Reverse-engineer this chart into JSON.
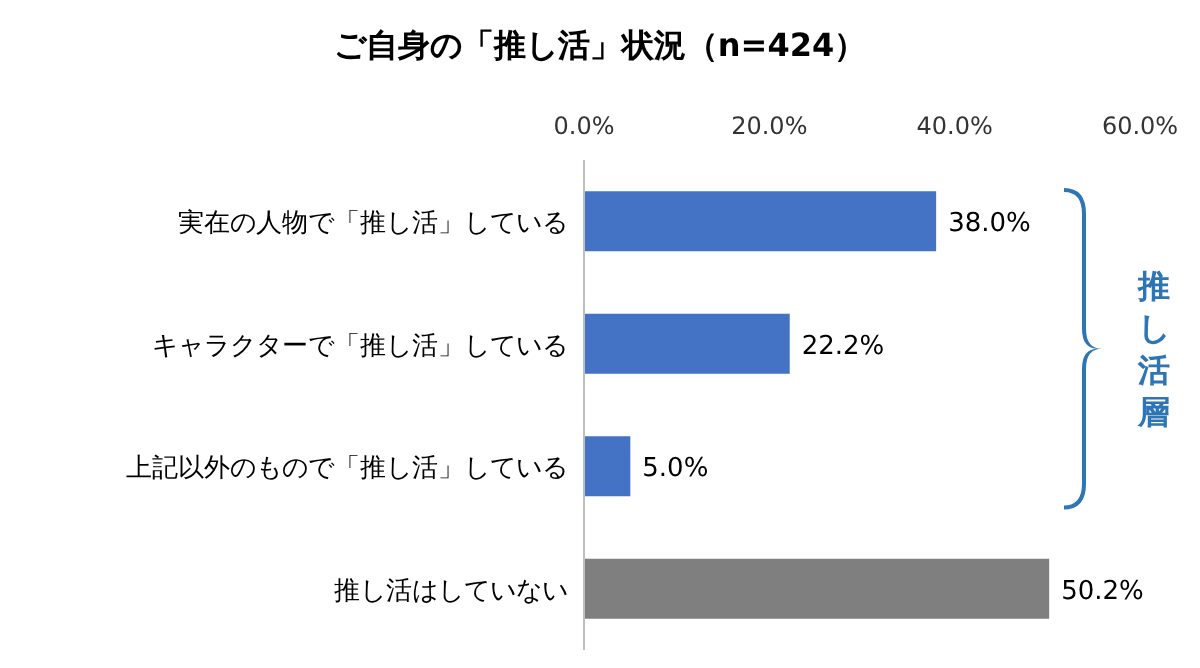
{
  "chart_data": {
    "type": "bar",
    "orientation": "horizontal",
    "title": "ご自身の「推し活」状況（n=424）",
    "categories": [
      "実在の人物で「推し活」している",
      "キャラクターで「推し活」している",
      "上記以外のもので「推し活」している",
      "推し活はしていない"
    ],
    "values": [
      38.0,
      22.2,
      5.0,
      50.2
    ],
    "colors": [
      "#4472c4",
      "#4472c4",
      "#4472c4",
      "#7f7f7f"
    ],
    "value_labels": [
      "38.0%",
      "22.2%",
      "5.0%",
      "50.2%"
    ],
    "xlim": [
      0,
      60
    ],
    "xticks": [
      {
        "value": 0,
        "label": "0.0%"
      },
      {
        "value": 20,
        "label": "20.0%"
      },
      {
        "value": 40,
        "label": "40.0%"
      },
      {
        "value": 60,
        "label": "60.0%"
      }
    ],
    "annotations": [
      "推し活層"
    ],
    "grid": false
  }
}
